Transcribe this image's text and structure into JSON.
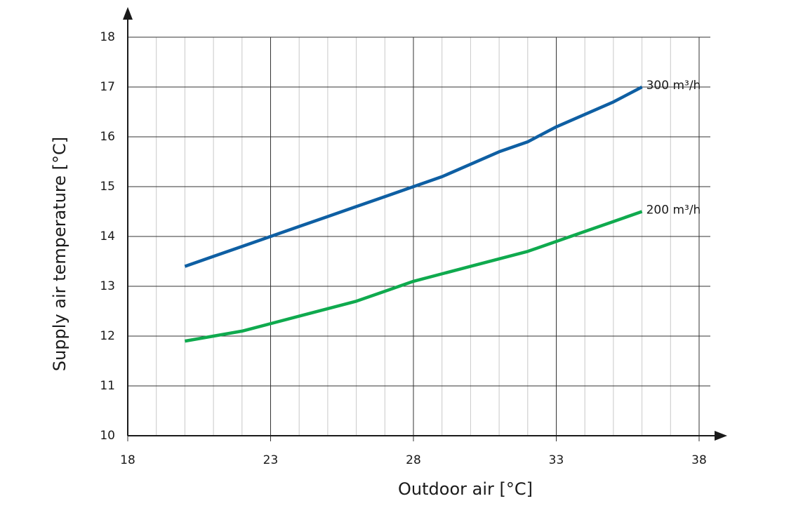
{
  "chart_data": {
    "type": "line",
    "x_label": "Outdoor air [°C]",
    "y_label": "Supply air temperature [°C]",
    "x": [
      20,
      21,
      22,
      23,
      24,
      25,
      26,
      27,
      28,
      29,
      30,
      31,
      32,
      33,
      34,
      35,
      36
    ],
    "series": [
      {
        "name": "300 m³/h",
        "color": "#0e5fa3",
        "values": [
          13.4,
          13.6,
          13.8,
          14.0,
          14.2,
          14.4,
          14.6,
          14.8,
          15.0,
          15.2,
          15.45,
          15.7,
          15.9,
          16.2,
          16.45,
          16.7,
          17.0
        ]
      },
      {
        "name": "200 m³/h",
        "color": "#0faa4e",
        "values": [
          11.9,
          12.0,
          12.1,
          12.25,
          12.4,
          12.55,
          12.7,
          12.9,
          13.1,
          13.25,
          13.4,
          13.55,
          13.7,
          13.9,
          14.1,
          14.3,
          14.5
        ]
      }
    ],
    "xlim": [
      18,
      38
    ],
    "ylim": [
      10,
      18
    ],
    "xticks": [
      18,
      23,
      28,
      33,
      38
    ],
    "xticks_minor": [
      19,
      20,
      21,
      22,
      24,
      25,
      26,
      27,
      29,
      30,
      31,
      32,
      34,
      35,
      36,
      37
    ],
    "yticks": [
      10,
      11,
      12,
      13,
      14,
      15,
      16,
      17,
      18
    ],
    "grid": true
  }
}
